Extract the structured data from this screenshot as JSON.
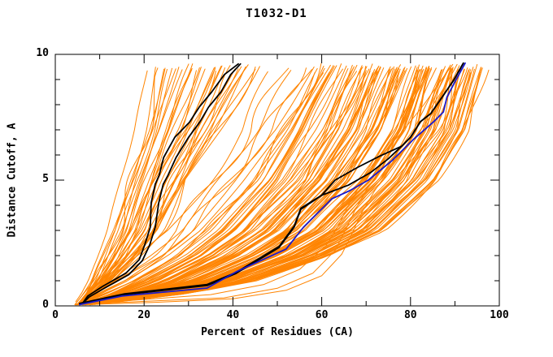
{
  "page": {
    "background": "#ffffff"
  },
  "chart_data": {
    "type": "line",
    "title": "T1032-D1",
    "xlabel": "Percent of Residues (CA)",
    "ylabel": "Distance Cutoff, A",
    "xlim": [
      0,
      100
    ],
    "ylim": [
      0,
      10
    ],
    "x_major_ticks": [
      0,
      20,
      40,
      60,
      80,
      100
    ],
    "x_minor_step": 10,
    "y_major_ticks": [
      0,
      5,
      10
    ],
    "y_minor_step": 1,
    "grid": false,
    "legend": false,
    "frame_color": "#000000",
    "ensemble": {
      "name": "predicted-model-curves",
      "color": "#ff8400",
      "seed": 12,
      "control_cutoffs": [
        0,
        0.5,
        1,
        2,
        3,
        5,
        7,
        9.65
      ],
      "groups": [
        {
          "name": "steep-left-group",
          "count": 36,
          "guide_left": [
            4.5,
            6.5,
            8,
            10,
            12,
            15,
            18,
            21
          ],
          "guide_right": [
            6,
            9,
            13,
            19,
            24,
            30,
            37,
            46
          ],
          "wiggle": 1.7
        },
        {
          "name": "middle-sparse-group",
          "count": 7,
          "guide_left": [
            5,
            8,
            12,
            19,
            25,
            33,
            41,
            48
          ],
          "guide_right": [
            6,
            11,
            17,
            26,
            33,
            43,
            52,
            62
          ],
          "wiggle": 1.9
        },
        {
          "name": "dense-right-group",
          "count": 118,
          "guide_left": [
            5,
            12,
            18,
            28,
            35,
            45,
            52,
            60
          ],
          "guide_right": [
            6,
            30,
            45,
            62,
            74,
            86,
            93,
            97
          ],
          "wiggle": 1.2
        }
      ],
      "outliers": [
        {
          "points": [
            [
              4.5,
              0.05
            ],
            [
              20,
              0.18
            ],
            [
              38,
              0.32
            ],
            [
              50,
              0.7
            ],
            [
              58,
              1.3
            ],
            [
              63,
              2.2
            ],
            [
              65,
              2.9
            ],
            [
              67.5,
              3.8
            ],
            [
              70,
              4.6
            ],
            [
              74,
              5.5
            ],
            [
              79,
              6.5
            ],
            [
              84,
              7.7
            ],
            [
              88,
              8.8
            ],
            [
              90.5,
              9.6
            ]
          ]
        },
        {
          "points": [
            [
              4.5,
              0.07
            ],
            [
              17,
              0.22
            ],
            [
              35,
              0.45
            ],
            [
              47,
              0.85
            ],
            [
              55,
              1.45
            ],
            [
              61,
              2.4
            ],
            [
              63.5,
              3.1
            ],
            [
              66,
              4.0
            ],
            [
              69,
              4.9
            ],
            [
              73,
              5.9
            ],
            [
              78,
              6.9
            ],
            [
              83,
              8.0
            ],
            [
              87,
              9.0
            ],
            [
              89.5,
              9.6
            ]
          ]
        },
        {
          "points": [
            [
              4.5,
              0.04
            ],
            [
              22,
              0.14
            ],
            [
              40,
              0.28
            ],
            [
              52,
              0.62
            ],
            [
              60,
              1.2
            ],
            [
              64.5,
              2.05
            ],
            [
              66.5,
              2.75
            ],
            [
              69,
              3.7
            ],
            [
              72,
              4.6
            ],
            [
              76,
              5.6
            ],
            [
              81,
              6.7
            ],
            [
              86,
              7.9
            ],
            [
              89.5,
              9.0
            ],
            [
              91,
              9.55
            ]
          ]
        }
      ]
    },
    "highlighted_series": [
      {
        "name": "best-model-black-left-a",
        "color": "#000000",
        "width": 1.8,
        "points": [
          [
            6.2,
            0.12
          ],
          [
            7.3,
            0.39
          ],
          [
            10.6,
            0.77
          ],
          [
            15.9,
            1.3
          ],
          [
            18.9,
            1.84
          ],
          [
            20.1,
            2.4
          ],
          [
            21.4,
            3.13
          ],
          [
            21.6,
            4.1
          ],
          [
            22.5,
            4.84
          ],
          [
            23.4,
            5.2
          ],
          [
            24.4,
            5.9
          ],
          [
            26.9,
            6.7
          ],
          [
            30.2,
            7.3
          ],
          [
            32.4,
            7.9
          ],
          [
            35.2,
            8.5
          ],
          [
            38.1,
            9.2
          ],
          [
            41.2,
            9.62
          ]
        ]
      },
      {
        "name": "best-model-black-left-b",
        "color": "#000000",
        "width": 1.8,
        "points": [
          [
            6.2,
            0.1
          ],
          [
            7.6,
            0.35
          ],
          [
            11.2,
            0.72
          ],
          [
            16.6,
            1.25
          ],
          [
            19.6,
            1.8
          ],
          [
            21.2,
            2.4
          ],
          [
            22.5,
            3.13
          ],
          [
            23.3,
            4.1
          ],
          [
            24.3,
            4.84
          ],
          [
            25.4,
            5.2
          ],
          [
            27.2,
            5.9
          ],
          [
            30.0,
            6.7
          ],
          [
            32.5,
            7.3
          ],
          [
            34.5,
            7.9
          ],
          [
            37.3,
            8.5
          ],
          [
            39.5,
            9.2
          ],
          [
            41.7,
            9.62
          ]
        ]
      },
      {
        "name": "best-model-black-mid-a",
        "color": "#000000",
        "width": 1.8,
        "points": [
          [
            5.5,
            0.08
          ],
          [
            15.6,
            0.45
          ],
          [
            34.2,
            0.81
          ],
          [
            40.7,
            1.29
          ],
          [
            50.4,
            2.32
          ],
          [
            53.8,
            3.13
          ],
          [
            55.3,
            3.84
          ],
          [
            60,
            4.4
          ],
          [
            63,
            5.0
          ],
          [
            68,
            5.5
          ],
          [
            73,
            5.95
          ],
          [
            78,
            6.35
          ],
          [
            80,
            6.7
          ],
          [
            82.2,
            7.32
          ],
          [
            84.6,
            7.65
          ],
          [
            89.6,
            8.94
          ],
          [
            91.9,
            9.65
          ]
        ]
      },
      {
        "name": "best-model-black-mid-b",
        "color": "#000000",
        "width": 1.8,
        "points": [
          [
            5.5,
            0.1
          ],
          [
            15.6,
            0.48
          ],
          [
            34.2,
            0.85
          ],
          [
            40.7,
            1.33
          ],
          [
            50.4,
            2.36
          ],
          [
            53.8,
            3.17
          ],
          [
            55.3,
            3.88
          ],
          [
            60,
            4.4
          ],
          [
            66,
            4.8
          ],
          [
            71,
            5.3
          ],
          [
            75,
            5.85
          ],
          [
            78,
            6.35
          ],
          [
            80,
            6.7
          ],
          [
            82.2,
            7.32
          ],
          [
            84.6,
            7.65
          ],
          [
            89.6,
            8.94
          ],
          [
            91.9,
            9.65
          ]
        ]
      },
      {
        "name": "reference-model-blue",
        "color": "#1a1acd",
        "width": 1.8,
        "points": [
          [
            5.5,
            0.05
          ],
          [
            15,
            0.39
          ],
          [
            34.2,
            0.71
          ],
          [
            40.7,
            1.35
          ],
          [
            52,
            2.26
          ],
          [
            55.9,
            3.13
          ],
          [
            62.3,
            4.26
          ],
          [
            66.3,
            4.58
          ],
          [
            70.5,
            5.0
          ],
          [
            75.8,
            5.77
          ],
          [
            80.6,
            6.61
          ],
          [
            85.2,
            7.32
          ],
          [
            87.4,
            7.71
          ],
          [
            88.2,
            8.3
          ],
          [
            90.1,
            8.94
          ],
          [
            92.3,
            9.65
          ]
        ]
      }
    ]
  }
}
